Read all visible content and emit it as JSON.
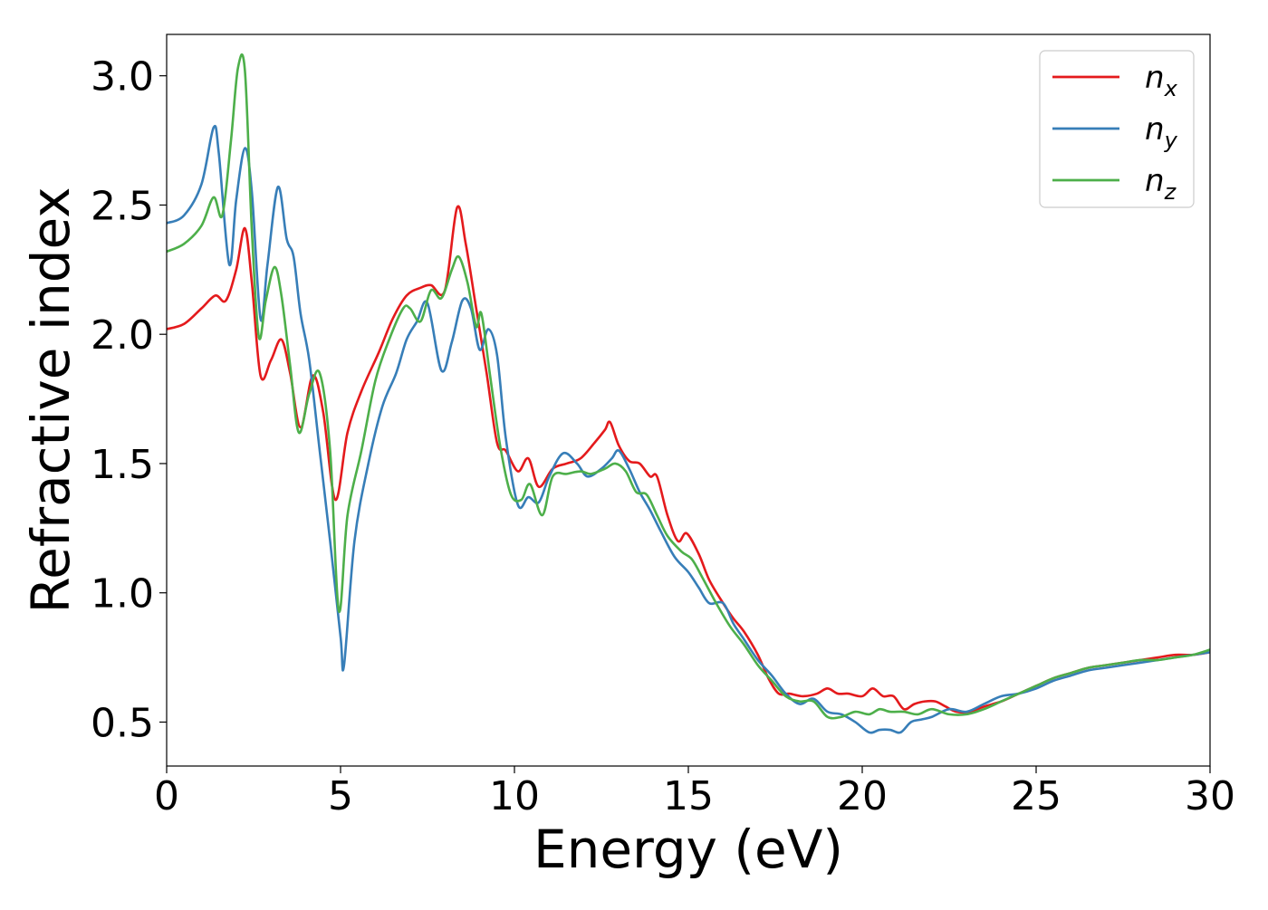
{
  "chart_data": {
    "type": "line",
    "title": "",
    "xlabel": "Energy (eV)",
    "ylabel": "Refractive index",
    "xlim": [
      0,
      30
    ],
    "ylim": [
      0.33,
      3.16
    ],
    "xticks": [
      0,
      5,
      10,
      15,
      20,
      25,
      30
    ],
    "xtick_labels": [
      "0",
      "5",
      "10",
      "15",
      "20",
      "25",
      "30"
    ],
    "yticks": [
      0.5,
      1.0,
      1.5,
      2.0,
      2.5,
      3.0
    ],
    "ytick_labels": [
      "0.5",
      "1.0",
      "1.5",
      "2.0",
      "2.5",
      "3.0"
    ],
    "grid": false,
    "legend_position": "top-right",
    "series": [
      {
        "name": "n",
        "subscript": "x",
        "color": "#e41a1c",
        "x": [
          0,
          0.5,
          1.0,
          1.4,
          1.7,
          2.0,
          2.25,
          2.45,
          2.7,
          3.0,
          3.3,
          3.55,
          3.85,
          4.2,
          4.5,
          4.85,
          5.2,
          5.6,
          6.1,
          6.5,
          6.9,
          7.3,
          7.6,
          8.0,
          8.35,
          8.6,
          8.9,
          9.2,
          9.5,
          9.75,
          10.1,
          10.4,
          10.7,
          11.1,
          11.5,
          11.9,
          12.3,
          12.6,
          12.75,
          13.0,
          13.3,
          13.6,
          13.9,
          14.1,
          14.4,
          14.7,
          14.95,
          15.3,
          15.6,
          16.0,
          16.3,
          16.6,
          17.0,
          17.3,
          17.6,
          17.9,
          18.3,
          18.7,
          19.0,
          19.3,
          19.6,
          20.0,
          20.3,
          20.6,
          20.9,
          21.2,
          21.5,
          21.8,
          22.1,
          22.4,
          22.7,
          23.1,
          23.5,
          24.0,
          24.5,
          25.0,
          25.5,
          26.0,
          26.5,
          27.0,
          27.5,
          28.0,
          28.5,
          29.0,
          29.5,
          30.0
        ],
        "y": [
          2.02,
          2.04,
          2.1,
          2.15,
          2.13,
          2.25,
          2.41,
          2.2,
          1.84,
          1.9,
          1.98,
          1.85,
          1.64,
          1.84,
          1.7,
          1.36,
          1.62,
          1.78,
          1.93,
          2.06,
          2.15,
          2.18,
          2.19,
          2.17,
          2.49,
          2.35,
          2.1,
          1.85,
          1.58,
          1.55,
          1.47,
          1.52,
          1.41,
          1.48,
          1.5,
          1.52,
          1.58,
          1.63,
          1.66,
          1.57,
          1.51,
          1.5,
          1.45,
          1.45,
          1.3,
          1.2,
          1.23,
          1.15,
          1.05,
          0.96,
          0.9,
          0.85,
          0.76,
          0.67,
          0.61,
          0.61,
          0.6,
          0.61,
          0.63,
          0.61,
          0.61,
          0.6,
          0.63,
          0.6,
          0.6,
          0.55,
          0.57,
          0.58,
          0.58,
          0.56,
          0.54,
          0.54,
          0.56,
          0.58,
          0.61,
          0.64,
          0.67,
          0.69,
          0.71,
          0.72,
          0.73,
          0.74,
          0.75,
          0.76,
          0.76,
          0.77
        ]
      },
      {
        "name": "n",
        "subscript": "y",
        "color": "#377eb8",
        "x": [
          0,
          0.5,
          1.0,
          1.35,
          1.5,
          1.8,
          2.0,
          2.25,
          2.45,
          2.7,
          2.9,
          3.2,
          3.45,
          3.65,
          3.85,
          4.1,
          4.4,
          4.7,
          5.0,
          5.1,
          5.4,
          5.8,
          6.2,
          6.6,
          6.9,
          7.2,
          7.5,
          7.9,
          8.2,
          8.5,
          8.75,
          9.0,
          9.25,
          9.5,
          9.75,
          10.1,
          10.4,
          10.7,
          11.0,
          11.4,
          11.8,
          12.1,
          12.5,
          12.8,
          13.0,
          13.3,
          13.6,
          13.9,
          14.2,
          14.6,
          15.0,
          15.3,
          15.6,
          16.0,
          16.3,
          16.6,
          17.0,
          17.4,
          17.8,
          18.2,
          18.6,
          19.0,
          19.4,
          19.8,
          20.2,
          20.5,
          20.8,
          21.1,
          21.4,
          21.7,
          22.0,
          22.5,
          23.0,
          23.5,
          24.0,
          24.5,
          25.0,
          25.5,
          26.0,
          26.5,
          27.0,
          27.5,
          28.0,
          28.5,
          29.0,
          29.5,
          30.0
        ],
        "y": [
          2.43,
          2.46,
          2.58,
          2.8,
          2.7,
          2.27,
          2.52,
          2.72,
          2.55,
          2.06,
          2.27,
          2.57,
          2.37,
          2.3,
          2.08,
          1.9,
          1.55,
          1.2,
          0.83,
          0.72,
          1.2,
          1.5,
          1.72,
          1.85,
          1.98,
          2.05,
          2.12,
          1.86,
          1.97,
          2.13,
          2.1,
          1.94,
          2.02,
          1.92,
          1.6,
          1.34,
          1.37,
          1.35,
          1.45,
          1.54,
          1.5,
          1.45,
          1.48,
          1.52,
          1.55,
          1.48,
          1.39,
          1.32,
          1.24,
          1.14,
          1.08,
          1.02,
          0.96,
          0.96,
          0.88,
          0.82,
          0.74,
          0.68,
          0.61,
          0.57,
          0.59,
          0.54,
          0.53,
          0.5,
          0.46,
          0.47,
          0.47,
          0.46,
          0.5,
          0.51,
          0.52,
          0.55,
          0.54,
          0.57,
          0.6,
          0.61,
          0.63,
          0.66,
          0.68,
          0.7,
          0.71,
          0.72,
          0.73,
          0.74,
          0.75,
          0.76,
          0.77
        ]
      },
      {
        "name": "n",
        "subscript": "z",
        "color": "#4daf4a",
        "x": [
          0,
          0.5,
          1.0,
          1.35,
          1.6,
          1.85,
          2.05,
          2.25,
          2.45,
          2.65,
          2.85,
          3.1,
          3.3,
          3.55,
          3.8,
          4.1,
          4.4,
          4.7,
          4.95,
          5.2,
          5.6,
          6.0,
          6.4,
          6.8,
          7.0,
          7.3,
          7.6,
          7.9,
          8.2,
          8.4,
          8.65,
          8.9,
          9.05,
          9.3,
          9.6,
          9.9,
          10.2,
          10.45,
          10.8,
          11.1,
          11.5,
          11.9,
          12.2,
          12.6,
          12.9,
          13.2,
          13.5,
          13.8,
          14.1,
          14.4,
          14.8,
          15.1,
          15.4,
          15.8,
          16.2,
          16.6,
          17.0,
          17.4,
          17.8,
          18.2,
          18.6,
          19.0,
          19.4,
          19.8,
          20.2,
          20.5,
          20.8,
          21.2,
          21.6,
          22.0,
          22.5,
          23.0,
          23.5,
          24.0,
          24.5,
          25.0,
          25.5,
          26.0,
          26.5,
          27.0,
          27.5,
          28.0,
          28.5,
          29.0,
          29.5,
          30.0
        ],
        "y": [
          2.32,
          2.35,
          2.42,
          2.53,
          2.46,
          2.75,
          3.03,
          3.02,
          2.4,
          1.99,
          2.13,
          2.26,
          2.15,
          1.88,
          1.62,
          1.77,
          1.85,
          1.55,
          0.93,
          1.3,
          1.55,
          1.82,
          1.98,
          2.1,
          2.1,
          2.05,
          2.17,
          2.14,
          2.25,
          2.3,
          2.2,
          2.03,
          2.08,
          1.84,
          1.56,
          1.38,
          1.36,
          1.42,
          1.3,
          1.45,
          1.46,
          1.47,
          1.46,
          1.48,
          1.5,
          1.47,
          1.39,
          1.38,
          1.3,
          1.22,
          1.16,
          1.13,
          1.06,
          0.96,
          0.87,
          0.8,
          0.72,
          0.66,
          0.6,
          0.58,
          0.58,
          0.52,
          0.52,
          0.54,
          0.53,
          0.55,
          0.54,
          0.54,
          0.53,
          0.55,
          0.53,
          0.53,
          0.55,
          0.58,
          0.61,
          0.64,
          0.67,
          0.69,
          0.71,
          0.72,
          0.73,
          0.74,
          0.74,
          0.75,
          0.76,
          0.78
        ]
      }
    ]
  }
}
